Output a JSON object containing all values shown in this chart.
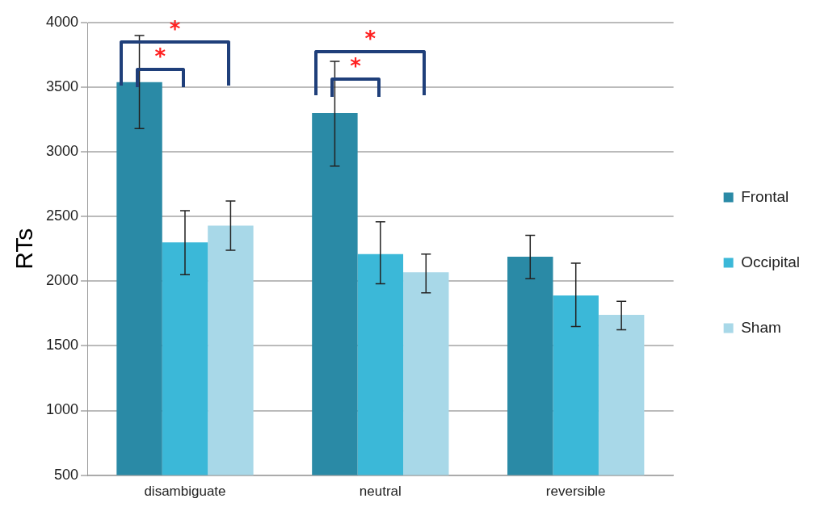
{
  "chart_data": {
    "type": "bar",
    "ylabel": "RTs",
    "categories": [
      "disambiguate",
      "neutral",
      "reversible"
    ],
    "series": [
      {
        "name": "Frontal",
        "color": "#2a8aa6",
        "values": [
          3540,
          3300,
          2190
        ],
        "errors": [
          [
            3180,
            3900
          ],
          [
            2890,
            3700
          ],
          [
            2020,
            2355
          ]
        ]
      },
      {
        "name": "Occipital",
        "color": "#3bb8d8",
        "values": [
          2300,
          2210,
          1890
        ],
        "errors": [
          [
            2050,
            2545
          ],
          [
            1980,
            2460
          ],
          [
            1650,
            2140
          ]
        ]
      },
      {
        "name": "Sham",
        "color": "#a8d8e8",
        "values": [
          2430,
          2070,
          1740
        ],
        "errors": [
          [
            2240,
            2620
          ],
          [
            1910,
            2210
          ],
          [
            1625,
            1845
          ]
        ]
      }
    ],
    "ylim": [
      500,
      4000
    ],
    "yticks": [
      500,
      1000,
      1500,
      2000,
      2500,
      3000,
      3500,
      4000
    ],
    "grid": "y",
    "legend": "right",
    "annotations": [
      "*",
      "*",
      "*",
      "*"
    ]
  }
}
